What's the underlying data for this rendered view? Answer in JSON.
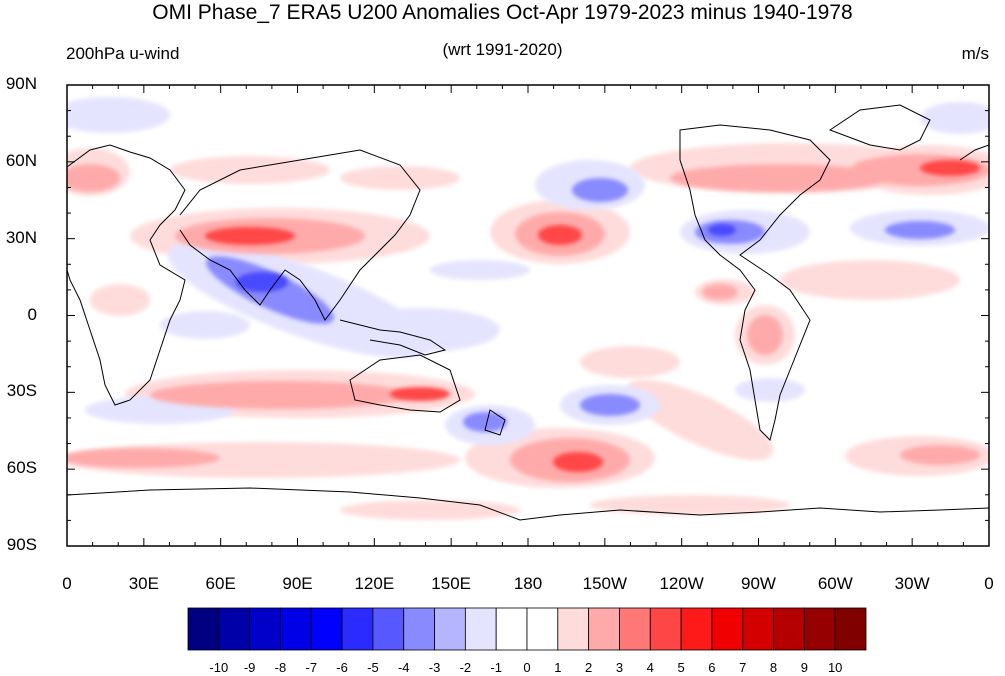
{
  "title": "OMI Phase_7 ERA5 U200 Anomalies Oct-Apr 1979-2023 minus 1940-1978",
  "subtitle_left": "200hPa u-wind",
  "subtitle_center": "(wrt 1991-2020)",
  "subtitle_right": "m/s",
  "lat_labels": [
    "90N",
    "60N",
    "30N",
    "0",
    "30S",
    "60S",
    "90S"
  ],
  "lon_labels": [
    "0",
    "30E",
    "60E",
    "90E",
    "120E",
    "150E",
    "180",
    "150W",
    "120W",
    "90W",
    "60W",
    "30W",
    "0"
  ],
  "colorbar": {
    "labels": [
      "-10",
      "-9",
      "-8",
      "-7",
      "-6",
      "-5",
      "-4",
      "-3",
      "-2",
      "-1",
      "0",
      "1",
      "2",
      "3",
      "4",
      "5",
      "6",
      "7",
      "8",
      "9",
      "10"
    ],
    "colors": [
      "#000080",
      "#0000a8",
      "#0000c8",
      "#0000e6",
      "#0000ff",
      "#2b2bff",
      "#5858ff",
      "#8a8aff",
      "#b4b4ff",
      "#e4e4ff",
      "#ffffff",
      "#ffffff",
      "#ffdcdc",
      "#ffaaaa",
      "#ff7878",
      "#ff4646",
      "#ff1a1a",
      "#f00000",
      "#d40000",
      "#b40000",
      "#960000",
      "#800000"
    ]
  },
  "colors": {
    "positive": "#ff0000",
    "negative": "#0000ff",
    "background": "#ffffff"
  }
}
